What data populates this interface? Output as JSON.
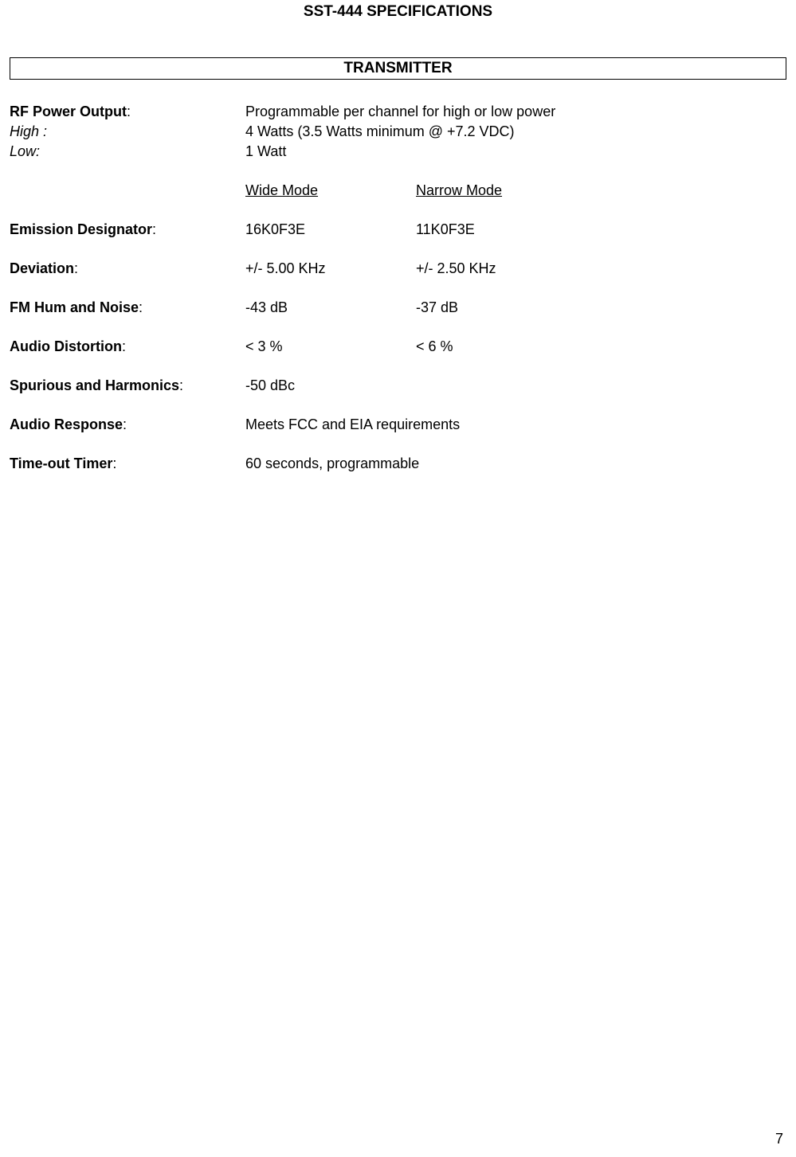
{
  "document": {
    "title": "SST-444 SPECIFICATIONS",
    "section": "TRANSMITTER",
    "page_number": "7"
  },
  "rf_power": {
    "label": "RF Power Output",
    "value": "Programmable per channel for high or low power",
    "high_label": "High :",
    "high_value": "4 Watts  (3.5 Watts minimum @ +7.2 VDC)",
    "low_label": "Low:",
    "low_value": "1 Watt"
  },
  "mode_headers": {
    "wide": "Wide Mode",
    "narrow": "Narrow Mode"
  },
  "emission": {
    "label": "Emission Designator",
    "wide": "16K0F3E",
    "narrow": "11K0F3E"
  },
  "deviation": {
    "label": "Deviation",
    "wide": "+/- 5.00 KHz",
    "narrow": "+/- 2.50 KHz"
  },
  "fm_hum": {
    "label": "FM Hum and Noise",
    "wide": "-43 dB",
    "narrow": "-37 dB"
  },
  "audio_distortion": {
    "label": "Audio Distortion",
    "wide": "< 3 %",
    "narrow": "< 6 %"
  },
  "spurious": {
    "label": "Spurious and Harmonics",
    "value": "-50 dBc"
  },
  "audio_response": {
    "label": "Audio Response",
    "value": "Meets FCC and EIA requirements"
  },
  "timeout": {
    "label": "Time-out Timer",
    "value": "60 seconds, programmable"
  }
}
